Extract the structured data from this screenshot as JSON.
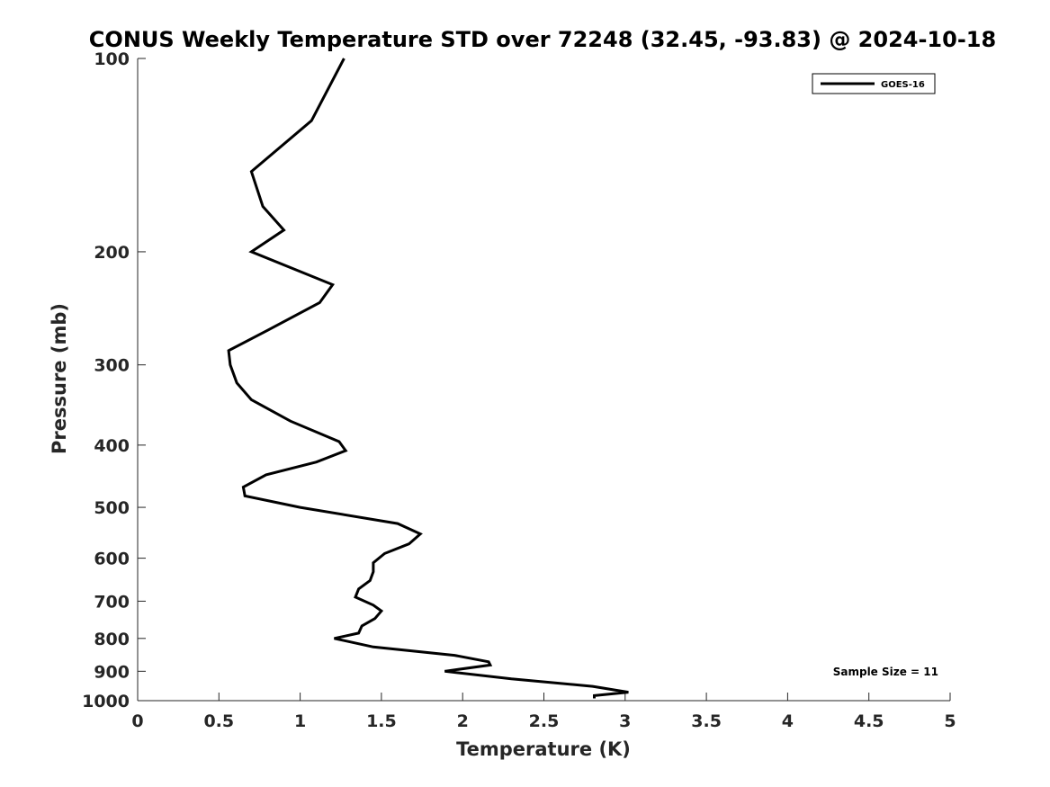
{
  "chart_data": {
    "type": "line",
    "title": "CONUS Weekly Temperature STD over 72248 (32.45, -93.83) @ 2024-10-18",
    "xlabel": "Temperature (K)",
    "ylabel": "Pressure (mb)",
    "xlim": [
      0,
      5
    ],
    "ylim": [
      1000,
      100
    ],
    "yscale": "log",
    "y_inverted": true,
    "grid": false,
    "legend_position": "top-right",
    "x_ticks": [
      0,
      0.5,
      1,
      1.5,
      2,
      2.5,
      3,
      3.5,
      4,
      4.5,
      5
    ],
    "x_tick_labels": [
      "0",
      "0.5",
      "1",
      "1.5",
      "2",
      "2.5",
      "3",
      "3.5",
      "4",
      "4.5",
      "5"
    ],
    "y_ticks": [
      100,
      200,
      300,
      400,
      500,
      600,
      700,
      800,
      900,
      1000
    ],
    "y_tick_labels": [
      "100",
      "200",
      "300",
      "400",
      "500",
      "600",
      "700",
      "800",
      "900",
      "1000"
    ],
    "series": [
      {
        "name": "GOES-16",
        "color": "#000000",
        "points": [
          [
            1.27,
            100
          ],
          [
            1.07,
            125
          ],
          [
            0.7,
            150
          ],
          [
            0.77,
            170
          ],
          [
            0.9,
            185
          ],
          [
            0.7,
            200
          ],
          [
            1.2,
            225
          ],
          [
            1.12,
            240
          ],
          [
            0.8,
            265
          ],
          [
            0.56,
            285
          ],
          [
            0.57,
            300
          ],
          [
            0.61,
            320
          ],
          [
            0.7,
            340
          ],
          [
            0.94,
            367
          ],
          [
            1.24,
            395
          ],
          [
            1.28,
            408
          ],
          [
            1.1,
            425
          ],
          [
            0.79,
            445
          ],
          [
            0.65,
            465
          ],
          [
            0.66,
            480
          ],
          [
            1.0,
            500
          ],
          [
            1.6,
            530
          ],
          [
            1.74,
            550
          ],
          [
            1.67,
            570
          ],
          [
            1.52,
            590
          ],
          [
            1.45,
            610
          ],
          [
            1.45,
            630
          ],
          [
            1.43,
            650
          ],
          [
            1.36,
            670
          ],
          [
            1.34,
            690
          ],
          [
            1.45,
            710
          ],
          [
            1.5,
            725
          ],
          [
            1.46,
            745
          ],
          [
            1.38,
            765
          ],
          [
            1.36,
            785
          ],
          [
            1.21,
            800
          ],
          [
            1.45,
            825
          ],
          [
            1.95,
            850
          ],
          [
            2.16,
            870
          ],
          [
            2.17,
            880
          ],
          [
            1.89,
            900
          ],
          [
            2.3,
            925
          ],
          [
            2.8,
            950
          ],
          [
            3.02,
            970
          ],
          [
            2.81,
            982
          ],
          [
            2.81,
            992
          ]
        ]
      }
    ],
    "annotations": [
      {
        "text": "Sample Size = 11",
        "position": "bottom-right"
      }
    ]
  }
}
